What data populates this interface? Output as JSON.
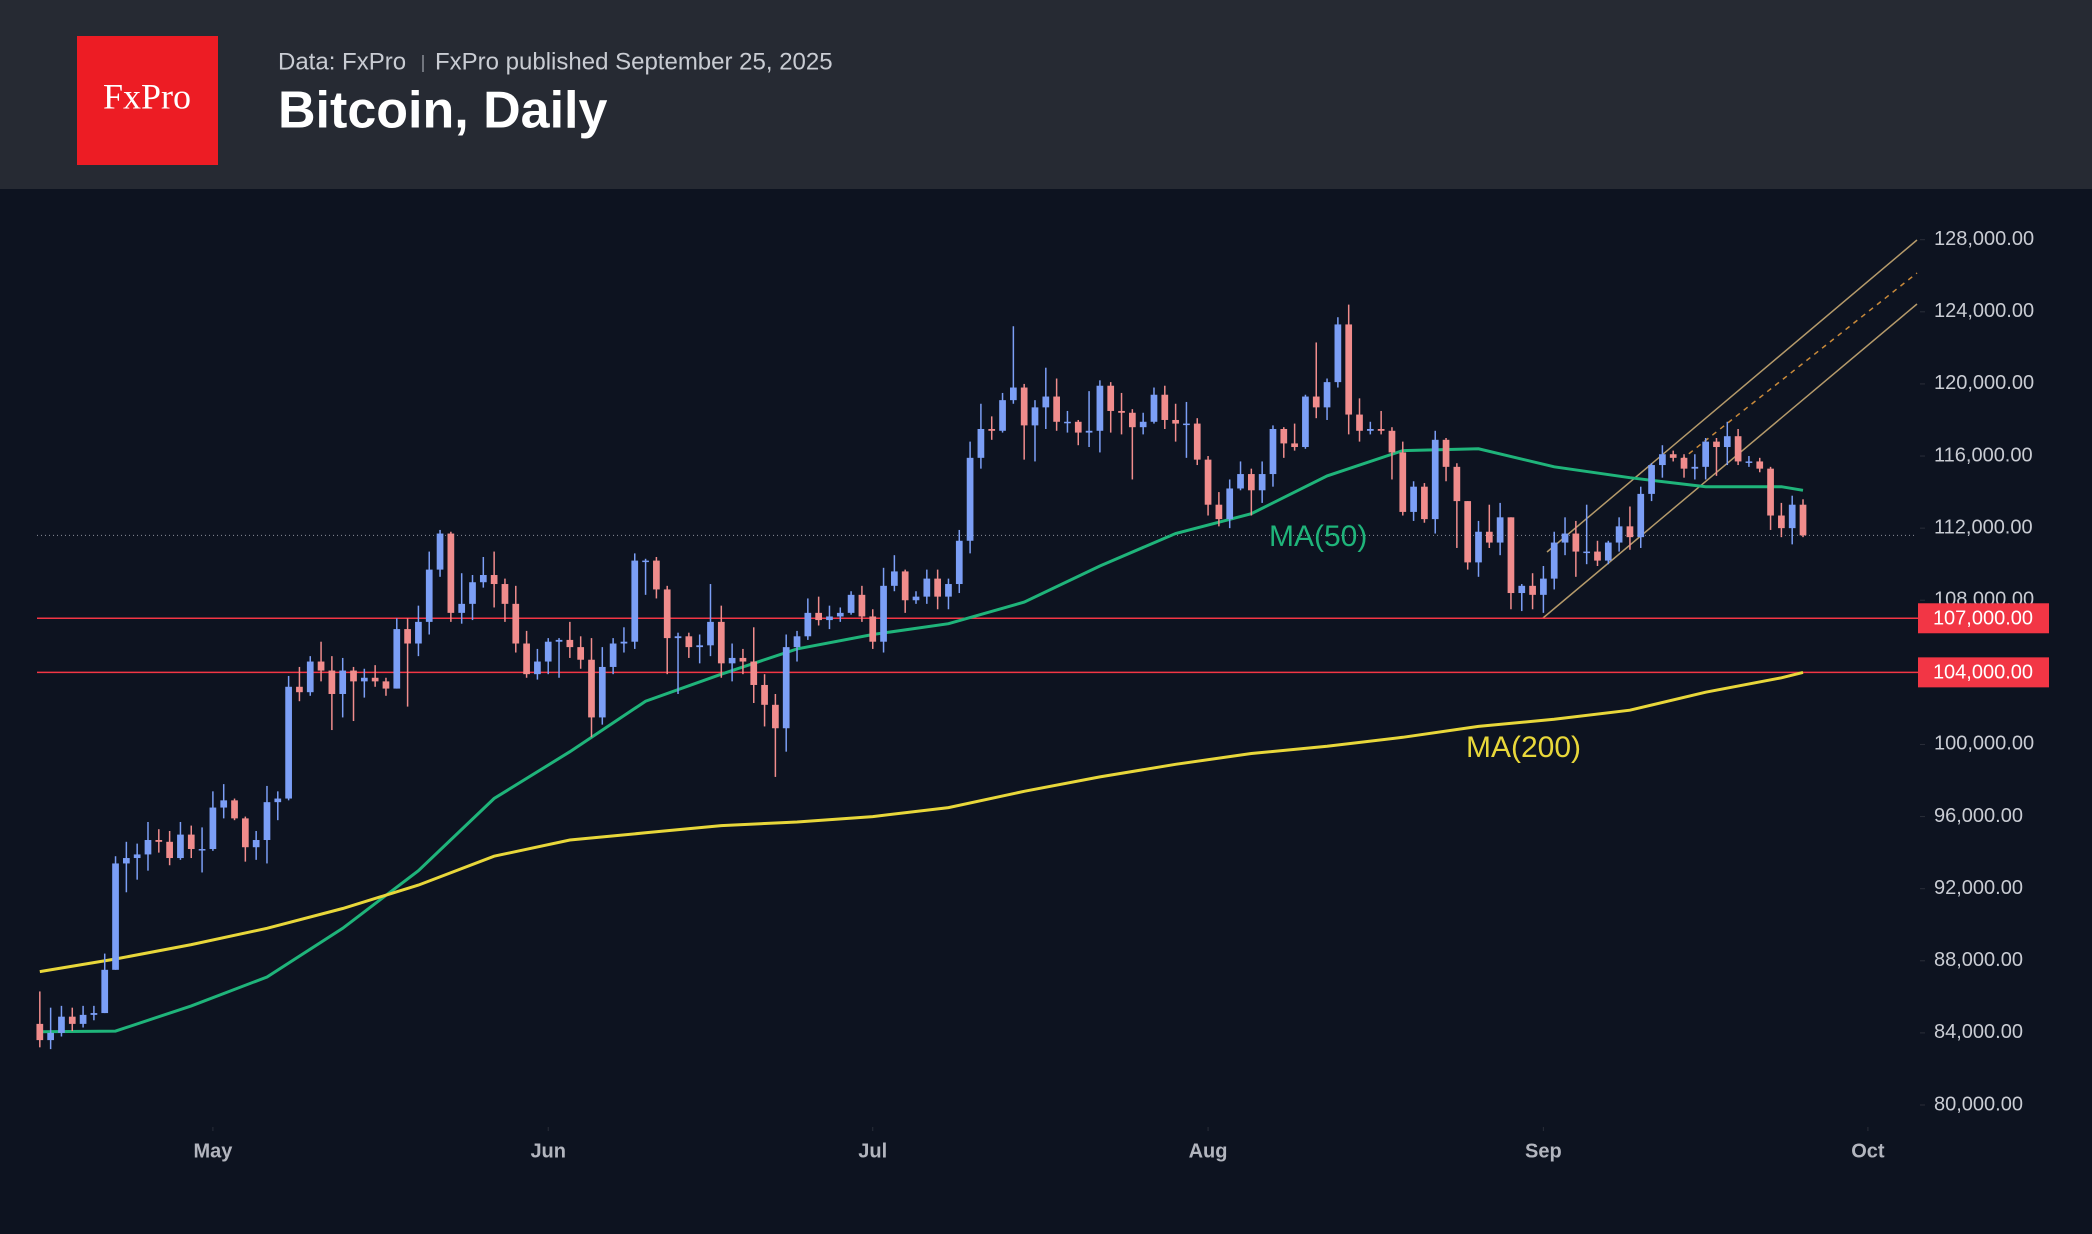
{
  "header": {
    "logo": "FxPro",
    "source": "Data: FxPro",
    "published": "FxPro published September 25, 2025"
  },
  "chart_data": {
    "type": "candlestick",
    "title": "Bitcoin, Daily",
    "up_color": "#7b9ef5",
    "down_color": "#f08c8c",
    "xlim": [
      -1,
      174
    ],
    "xticks": [
      {
        "value": 16,
        "label": "May"
      },
      {
        "value": 47,
        "label": "Jun"
      },
      {
        "value": 77,
        "label": "Jul"
      },
      {
        "value": 108,
        "label": "Aug"
      },
      {
        "value": 139,
        "label": "Sep"
      },
      {
        "value": 169,
        "label": "Oct"
      }
    ],
    "ylim": [
      78780,
      130480
    ],
    "yticks": [
      {
        "value": 80000,
        "label": "80,000.00"
      },
      {
        "value": 84000,
        "label": "84,000.00"
      },
      {
        "value": 88000,
        "label": "88,000.00"
      },
      {
        "value": 92000,
        "label": "92,000.00"
      },
      {
        "value": 96000,
        "label": "96,000.00"
      },
      {
        "value": 100000,
        "label": "100,000.00"
      },
      {
        "value": 104000,
        "label": "104,000.00"
      },
      {
        "value": 108000,
        "label": "108,000.00"
      },
      {
        "value": 112000,
        "label": "112,000.00"
      },
      {
        "value": 116000,
        "label": "116,000.00"
      },
      {
        "value": 120000,
        "label": "120,000.00"
      },
      {
        "value": 124000,
        "label": "124,000.00"
      },
      {
        "value": 128000,
        "label": "128,000.00"
      }
    ],
    "hlines": [
      {
        "value": 107000,
        "label": "107,000.00"
      },
      {
        "value": 104000,
        "label": "104,000.00"
      }
    ],
    "hline_color": "#f23645",
    "price_line": 111600,
    "open": [
      84500,
      83600,
      84000,
      84900,
      84500,
      85000,
      85100,
      87500,
      93400,
      93700,
      93900,
      94700,
      94600,
      93700,
      95000,
      94200,
      94200,
      96500,
      96900,
      95900,
      94300,
      94700,
      96800,
      97000,
      103200,
      102900,
      104600,
      104100,
      102800,
      104100,
      103500,
      103700,
      103500,
      103100,
      106400,
      105600,
      106800,
      109700,
      111700,
      107300,
      107800,
      109000,
      109400,
      108900,
      107800,
      105600,
      103900,
      104600,
      105700,
      105800,
      105400,
      104700,
      101500,
      104300,
      105600,
      105700,
      110200,
      110200,
      108600,
      105900,
      106000,
      105400,
      105500,
      106800,
      104500,
      104800,
      104600,
      103300,
      102200,
      100900,
      105400,
      106000,
      107300,
      106900,
      107100,
      107300,
      108300,
      107100,
      105700,
      108800,
      109600,
      108000,
      108200,
      109200,
      108200,
      108900,
      111300,
      115900,
      117500,
      117400,
      119100,
      119800,
      117700,
      118700,
      119300,
      117900,
      117900,
      117300,
      117400,
      119900,
      118500,
      118400,
      117600,
      117900,
      119400,
      118000,
      117800,
      117800,
      115800,
      113300,
      112500,
      114200,
      115000,
      114100,
      115000,
      117500,
      116700,
      116500,
      119300,
      118700,
      120100,
      123300,
      118300,
      117400,
      117500,
      117400,
      116200,
      112900,
      114300,
      112500,
      116900,
      115400,
      113500,
      110100,
      111800,
      111200,
      112600,
      108400,
      108800,
      108300,
      109200,
      111200,
      111700,
      110700,
      110700,
      110200,
      111200,
      112100,
      111500,
      113900,
      115500,
      116100,
      115900,
      115300,
      115400,
      116800,
      116500,
      117100,
      115700,
      115700,
      115300,
      112700,
      112000,
      113300
    ],
    "high": [
      86300,
      85400,
      85500,
      85400,
      85500,
      85500,
      88400,
      93800,
      94600,
      94500,
      95700,
      95300,
      95200,
      95700,
      95500,
      95400,
      97400,
      97800,
      97000,
      96000,
      95200,
      97700,
      97400,
      103800,
      104300,
      104900,
      105700,
      104900,
      104800,
      104300,
      104200,
      104400,
      103700,
      107000,
      107000,
      107700,
      110700,
      111900,
      111800,
      109500,
      109400,
      110400,
      110700,
      109200,
      108800,
      106300,
      105300,
      105900,
      105900,
      106800,
      106000,
      105900,
      105400,
      105900,
      106500,
      110600,
      110300,
      110400,
      108800,
      106200,
      106200,
      106100,
      108900,
      107700,
      105600,
      105300,
      106500,
      103900,
      102800,
      106100,
      106300,
      108100,
      108200,
      107700,
      107600,
      108500,
      108800,
      107500,
      109800,
      110500,
      109700,
      108500,
      109700,
      109700,
      109200,
      111900,
      116800,
      118900,
      118200,
      119500,
      123200,
      120000,
      119100,
      120900,
      120300,
      118500,
      118000,
      119600,
      120200,
      120100,
      119500,
      118600,
      118400,
      119800,
      119900,
      118900,
      119000,
      118100,
      116000,
      114000,
      114700,
      115700,
      115300,
      115700,
      117700,
      117600,
      117800,
      119400,
      122300,
      120300,
      123700,
      124400,
      119200,
      117900,
      118500,
      117600,
      116800,
      114600,
      114500,
      117400,
      117000,
      115600,
      113500,
      112400,
      113300,
      113400,
      112600,
      108900,
      109500,
      109900,
      111800,
      112600,
      112400,
      113300,
      111300,
      111300,
      112600,
      113200,
      114300,
      115600,
      116600,
      116300,
      116100,
      116100,
      117000,
      117000,
      117900,
      117500,
      116000,
      115900,
      115400,
      113400,
      113800,
      113600
    ],
    "low": [
      83200,
      83100,
      83800,
      84100,
      84300,
      84700,
      85100,
      87500,
      91800,
      92500,
      93000,
      94000,
      93300,
      93600,
      93700,
      92900,
      94100,
      95900,
      95800,
      93500,
      93600,
      93400,
      95800,
      96900,
      102400,
      102700,
      103500,
      100800,
      101500,
      101300,
      102600,
      103200,
      102700,
      103100,
      102100,
      104900,
      106100,
      109300,
      106800,
      106700,
      106900,
      108700,
      107600,
      106800,
      105100,
      103700,
      103600,
      103900,
      103700,
      104800,
      104200,
      100400,
      101100,
      103900,
      105100,
      105300,
      108300,
      108100,
      103900,
      102800,
      104800,
      104500,
      104900,
      103700,
      103500,
      103900,
      102300,
      101000,
      98200,
      99600,
      104600,
      105800,
      106600,
      106400,
      106800,
      107200,
      106800,
      105300,
      105100,
      108500,
      107300,
      107800,
      107800,
      107500,
      107500,
      108400,
      110600,
      115300,
      116900,
      117300,
      118900,
      115800,
      115700,
      117500,
      117400,
      117300,
      116600,
      116500,
      116200,
      117300,
      117200,
      114700,
      117200,
      117800,
      117500,
      116800,
      115900,
      115500,
      112700,
      112100,
      112000,
      114100,
      112700,
      113400,
      114300,
      115900,
      116300,
      116400,
      118100,
      118000,
      119800,
      117200,
      116800,
      117200,
      117200,
      114700,
      112700,
      112400,
      112300,
      111700,
      114600,
      110900,
      109700,
      109300,
      110900,
      110500,
      107500,
      107400,
      107500,
      107300,
      108600,
      110500,
      109300,
      110000,
      109900,
      110000,
      110700,
      110800,
      110900,
      113500,
      114800,
      115700,
      114800,
      114700,
      114700,
      114900,
      115500,
      115500,
      115400,
      115100,
      111900,
      111500,
      111100,
      111500
    ],
    "close": [
      83600,
      84000,
      84900,
      84500,
      85000,
      85100,
      87500,
      93400,
      93700,
      93900,
      94700,
      94600,
      93700,
      95000,
      94200,
      94200,
      96500,
      96900,
      95900,
      94300,
      94700,
      96800,
      97000,
      103200,
      102900,
      104600,
      104100,
      102800,
      104100,
      103500,
      103700,
      103500,
      103100,
      106400,
      105600,
      106800,
      109700,
      111700,
      107300,
      107800,
      109000,
      109400,
      108900,
      107800,
      105600,
      103900,
      104600,
      105700,
      105800,
      105400,
      104700,
      101500,
      104300,
      105600,
      105700,
      110200,
      110200,
      108600,
      105900,
      106000,
      105400,
      105500,
      106800,
      104500,
      104800,
      104600,
      103300,
      102200,
      100900,
      105400,
      106000,
      107300,
      106900,
      107100,
      107300,
      108300,
      107100,
      105700,
      108800,
      109600,
      108000,
      108200,
      109200,
      108200,
      108900,
      111300,
      115900,
      117500,
      117400,
      119100,
      119800,
      117700,
      118700,
      119300,
      117900,
      117900,
      117300,
      117400,
      119900,
      118500,
      118400,
      117600,
      117900,
      119400,
      118000,
      117800,
      117800,
      115800,
      113300,
      112500,
      114200,
      115000,
      114100,
      115000,
      117500,
      116700,
      116500,
      119300,
      118700,
      120100,
      123300,
      118300,
      117400,
      117500,
      117400,
      116200,
      112900,
      114300,
      112500,
      116900,
      115400,
      113500,
      110100,
      111800,
      111200,
      112600,
      108400,
      108800,
      108300,
      109200,
      111200,
      111700,
      110700,
      110700,
      110200,
      111200,
      112100,
      111500,
      113900,
      115500,
      116100,
      115900,
      115300,
      115400,
      116800,
      116500,
      117100,
      115700,
      115700,
      115300,
      112700,
      112000,
      113300,
      111600
    ],
    "series": [
      {
        "name": "MA(50)",
        "color": "#1fb47a",
        "x": [
          0,
          7,
          14,
          21,
          28,
          35,
          42,
          49,
          56,
          63,
          70,
          77,
          84,
          91,
          98,
          105,
          112,
          119,
          126,
          133,
          140,
          147,
          154,
          161,
          163
        ],
        "values": [
          84060,
          84100,
          85500,
          87100,
          89800,
          93000,
          97000,
          99600,
          102400,
          103900,
          105300,
          106100,
          106700,
          107900,
          109900,
          111700,
          112800,
          114900,
          116300,
          116400,
          115400,
          114800,
          114300,
          114300,
          114100
        ]
      },
      {
        "name": "MA(200)",
        "color": "#e8d73a",
        "x": [
          0,
          7,
          14,
          21,
          28,
          35,
          42,
          49,
          56,
          63,
          70,
          77,
          84,
          91,
          98,
          105,
          112,
          119,
          126,
          133,
          140,
          147,
          154,
          161,
          163
        ],
        "values": [
          87400,
          88100,
          88900,
          89800,
          90900,
          92200,
          93800,
          94700,
          95100,
          95500,
          95700,
          96000,
          96500,
          97400,
          98200,
          98900,
          99500,
          99900,
          100400,
          101000,
          101400,
          101900,
          102900,
          103700,
          104000
        ]
      }
    ]
  }
}
